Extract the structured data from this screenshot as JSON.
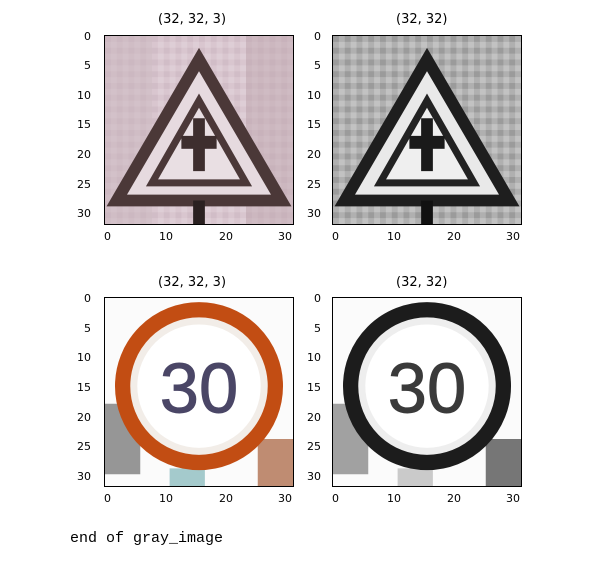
{
  "panels": [
    {
      "title": "(32, 32, 3)",
      "image": "warning-sign-color"
    },
    {
      "title": "(32, 32)",
      "image": "warning-sign-gray"
    },
    {
      "title": "(32, 32, 3)",
      "image": "speed-limit-30-color"
    },
    {
      "title": "(32, 32)",
      "image": "speed-limit-30-gray"
    }
  ],
  "yticks": [
    "0",
    "5",
    "10",
    "15",
    "20",
    "25",
    "30"
  ],
  "xticks": [
    "0",
    "10",
    "20",
    "30"
  ],
  "sign_text": "30",
  "output_text": "end of gray_image",
  "colors": {
    "warning_bg": "#d8c4cc",
    "warning_border": "#4a3a3a",
    "speed_ring_color": "#c04a12",
    "gray_bg": "#a8a8a8"
  }
}
